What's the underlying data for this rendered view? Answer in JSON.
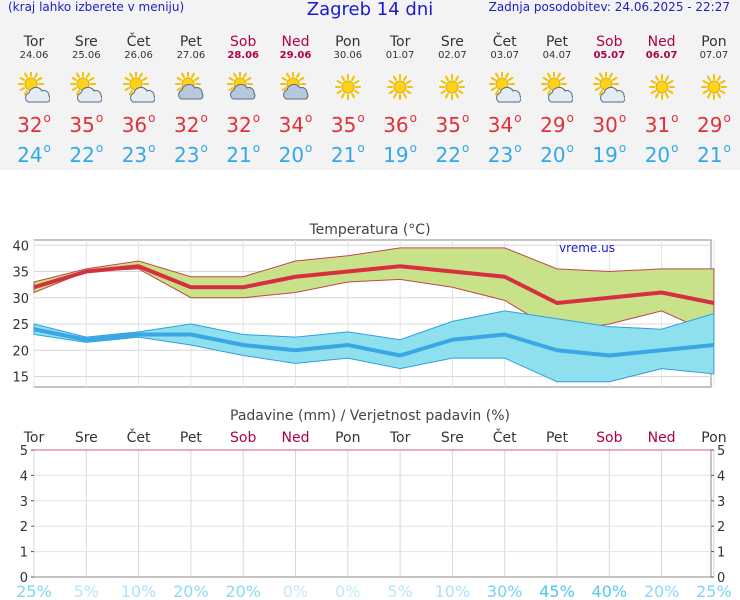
{
  "header": {
    "note": "(kraj lahko izberete v meniju)",
    "title": "Zagreb 14 dni",
    "updated": "Zadnja posodobitev: 24.06.2025 - 22:27"
  },
  "days": [
    {
      "name": "Tor",
      "date": "24.06",
      "weekend": false,
      "icon": "sun-partly-cloudy-icon",
      "max": "32",
      "min": "24"
    },
    {
      "name": "Sre",
      "date": "25.06",
      "weekend": false,
      "icon": "sun-partly-cloudy-icon",
      "max": "35",
      "min": "22"
    },
    {
      "name": "Čet",
      "date": "26.06",
      "weekend": false,
      "icon": "sun-partly-cloudy-icon",
      "max": "36",
      "min": "23"
    },
    {
      "name": "Pet",
      "date": "27.06",
      "weekend": false,
      "icon": "cloudy-sun-icon",
      "max": "32",
      "min": "23"
    },
    {
      "name": "Sob",
      "date": "28.06",
      "weekend": true,
      "icon": "cloudy-sun-icon",
      "max": "32",
      "min": "21"
    },
    {
      "name": "Ned",
      "date": "29.06",
      "weekend": true,
      "icon": "cloudy-sun-icon",
      "max": "34",
      "min": "20"
    },
    {
      "name": "Pon",
      "date": "30.06",
      "weekend": false,
      "icon": "sun-icon",
      "max": "35",
      "min": "21"
    },
    {
      "name": "Tor",
      "date": "01.07",
      "weekend": false,
      "icon": "sun-icon",
      "max": "36",
      "min": "19"
    },
    {
      "name": "Sre",
      "date": "02.07",
      "weekend": false,
      "icon": "sun-icon",
      "max": "35",
      "min": "22"
    },
    {
      "name": "Čet",
      "date": "03.07",
      "weekend": false,
      "icon": "sun-partly-cloudy-icon",
      "max": "34",
      "min": "23"
    },
    {
      "name": "Pet",
      "date": "04.07",
      "weekend": false,
      "icon": "sun-partly-cloudy-icon",
      "max": "29",
      "min": "20"
    },
    {
      "name": "Sob",
      "date": "05.07",
      "weekend": true,
      "icon": "sun-partly-cloudy-icon",
      "max": "30",
      "min": "19"
    },
    {
      "name": "Ned",
      "date": "06.07",
      "weekend": true,
      "icon": "sun-icon",
      "max": "31",
      "min": "20"
    },
    {
      "name": "Pon",
      "date": "07.07",
      "weekend": false,
      "icon": "sun-icon",
      "max": "29",
      "min": "21"
    }
  ],
  "colors": {
    "max_line": "#d63040",
    "max_band": "#c8e28a",
    "min_line": "#3aa6e6",
    "min_band": "#8fe0ee",
    "weekend": "#b00048",
    "prob": "#4cc4ee"
  },
  "chart_data": [
    {
      "type": "line",
      "title": "Temperatura (°C)",
      "watermark": "vreme.us",
      "ylim": [
        13,
        41
      ],
      "yticks": [
        15,
        20,
        25,
        30,
        35,
        40
      ],
      "series": [
        {
          "values": [
            32,
            35,
            36,
            32,
            32,
            34,
            35,
            36,
            35,
            34,
            29,
            30,
            31,
            29
          ],
          "band_high": [
            33,
            35.5,
            37,
            34,
            34,
            37,
            38,
            39.5,
            39.5,
            39.5,
            35.5,
            35,
            35.5,
            35.5
          ],
          "band_low": [
            31,
            35,
            35.5,
            30,
            30,
            31,
            33,
            33.5,
            32,
            29.5,
            23.5,
            25,
            27.5,
            23
          ]
        },
        {
          "values": [
            24,
            22,
            23,
            23,
            21,
            20,
            21,
            19,
            22,
            23,
            20,
            19,
            20,
            21
          ],
          "band_high": [
            25,
            22.5,
            23.5,
            25,
            23,
            22.5,
            23.5,
            22,
            25.5,
            27.5,
            26,
            24.5,
            24,
            27
          ],
          "band_low": [
            23,
            21.5,
            22.5,
            21,
            19,
            17.5,
            18.5,
            16.5,
            18.5,
            18.5,
            14,
            14,
            16.5,
            15.5
          ]
        }
      ]
    },
    {
      "type": "bar",
      "title": "Padavine (mm) / Verjetnost padavin (%)",
      "categories": [
        "Tor",
        "Sre",
        "Čet",
        "Pet",
        "Sob",
        "Ned",
        "Pon",
        "Tor",
        "Sre",
        "Čet",
        "Pet",
        "Sob",
        "Ned",
        "Pon"
      ],
      "ylim": [
        0,
        5
      ],
      "yticks": [
        0,
        1,
        2,
        3,
        4,
        5
      ],
      "values": [
        0,
        0,
        0,
        0,
        0,
        0,
        0,
        0,
        0,
        0,
        0,
        0,
        0,
        0
      ],
      "probability": [
        "25%",
        "5%",
        "10%",
        "20%",
        "20%",
        "0%",
        "0%",
        "5%",
        "10%",
        "30%",
        "45%",
        "40%",
        "20%",
        "25%"
      ]
    }
  ]
}
